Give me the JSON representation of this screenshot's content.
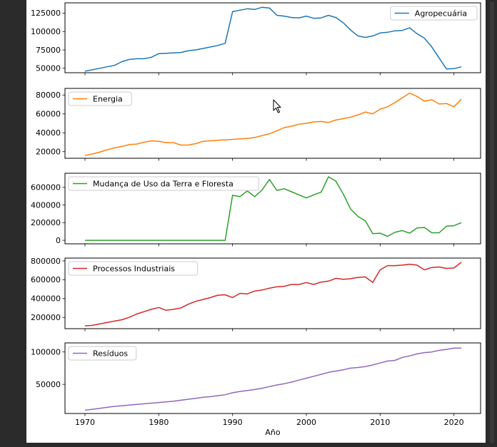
{
  "chart_data": {
    "type": "line",
    "xlabel": "Año",
    "x_ticks": [
      1970,
      1980,
      1990,
      2000,
      2010,
      2020
    ],
    "years": [
      1970,
      1971,
      1972,
      1973,
      1974,
      1975,
      1976,
      1977,
      1978,
      1979,
      1980,
      1981,
      1982,
      1983,
      1984,
      1985,
      1986,
      1987,
      1988,
      1989,
      1990,
      1991,
      1992,
      1993,
      1994,
      1995,
      1996,
      1997,
      1998,
      1999,
      2000,
      2001,
      2002,
      2003,
      2004,
      2005,
      2006,
      2007,
      2008,
      2009,
      2010,
      2011,
      2012,
      2013,
      2014,
      2015,
      2016,
      2017,
      2018,
      2019,
      2020,
      2021
    ],
    "panels": [
      {
        "name": "Agropecuária",
        "color": "#1f77b4",
        "legend": "top-right",
        "ylim": [
          44000,
          139000
        ],
        "yticks": [
          50000,
          75000,
          100000,
          125000
        ],
        "values": [
          46000,
          48000,
          50000,
          52000,
          54000,
          59000,
          62000,
          63000,
          63000,
          65000,
          70000,
          70500,
          71000,
          71500,
          74000,
          75000,
          77000,
          79000,
          81000,
          84000,
          127000,
          129000,
          131000,
          130000,
          133000,
          132000,
          122000,
          121000,
          119000,
          118500,
          121000,
          118000,
          118500,
          122000,
          119000,
          112000,
          102000,
          94000,
          92000,
          94000,
          98000,
          99000,
          101000,
          101500,
          105000,
          97000,
          91000,
          79000,
          64000,
          49000,
          49500,
          52000
        ]
      },
      {
        "name": "Energia",
        "color": "#ff7f0e",
        "legend": "top-left",
        "ylim": [
          13000,
          87000
        ],
        "yticks": [
          20000,
          40000,
          60000,
          80000
        ],
        "values": [
          16000,
          17500,
          19500,
          22000,
          24000,
          25500,
          27500,
          28000,
          30000,
          31500,
          31000,
          29500,
          29500,
          27000,
          27000,
          28500,
          31000,
          31500,
          32000,
          32500,
          33000,
          33500,
          34000,
          35000,
          37000,
          39000,
          42000,
          45500,
          47000,
          49000,
          50000,
          51500,
          52000,
          51000,
          53500,
          55000,
          56500,
          59000,
          62000,
          60000,
          65000,
          67500,
          72000,
          77000,
          82000,
          78500,
          73500,
          75000,
          70500,
          71000,
          67500,
          75500
        ]
      },
      {
        "name": "Mudança de Uso da Terra e Floresta",
        "color": "#2ca02c",
        "legend": "top-left",
        "ylim": [
          -40000,
          760000
        ],
        "yticks": [
          0,
          200000,
          400000,
          600000
        ],
        "values": [
          0,
          0,
          0,
          0,
          0,
          0,
          0,
          0,
          0,
          0,
          0,
          0,
          0,
          0,
          0,
          0,
          0,
          0,
          0,
          0,
          510000,
          495000,
          560000,
          495000,
          570000,
          690000,
          565000,
          585000,
          550000,
          515000,
          480000,
          515000,
          545000,
          720000,
          670000,
          525000,
          355000,
          270000,
          220000,
          75000,
          80000,
          45000,
          90000,
          110000,
          80000,
          140000,
          145000,
          85000,
          85000,
          160000,
          165000,
          200000
        ]
      },
      {
        "name": "Processos Industriais",
        "color": "#d62728",
        "legend": "top-left",
        "ylim": [
          80000,
          830000
        ],
        "yticks": [
          200000,
          400000,
          600000,
          800000
        ],
        "values": [
          110000,
          115000,
          130000,
          145000,
          160000,
          175000,
          200000,
          235000,
          260000,
          285000,
          305000,
          275000,
          285000,
          300000,
          340000,
          370000,
          390000,
          410000,
          435000,
          440000,
          410000,
          455000,
          450000,
          480000,
          490000,
          510000,
          525000,
          530000,
          550000,
          550000,
          570000,
          550000,
          575000,
          585000,
          615000,
          605000,
          610000,
          625000,
          630000,
          570000,
          705000,
          750000,
          750000,
          755000,
          765000,
          755000,
          705000,
          730000,
          735000,
          720000,
          725000,
          785000
        ]
      },
      {
        "name": "Resíduos",
        "color": "#9467bd",
        "legend": "top-left",
        "ylim": [
          5000,
          114000
        ],
        "yticks": [
          50000,
          100000
        ],
        "values": [
          10000,
          11500,
          13000,
          14500,
          16000,
          17000,
          18000,
          19000,
          20000,
          21000,
          22000,
          23000,
          24000,
          25500,
          27000,
          28500,
          30000,
          31000,
          32500,
          34000,
          37000,
          39000,
          40500,
          42000,
          44000,
          46500,
          49000,
          51000,
          53500,
          56500,
          59500,
          62500,
          65500,
          68500,
          70500,
          72500,
          75000,
          76000,
          77500,
          80000,
          83000,
          86000,
          87000,
          91500,
          94000,
          97000,
          99000,
          100000,
          102500,
          104000,
          106000,
          106000
        ]
      }
    ]
  }
}
